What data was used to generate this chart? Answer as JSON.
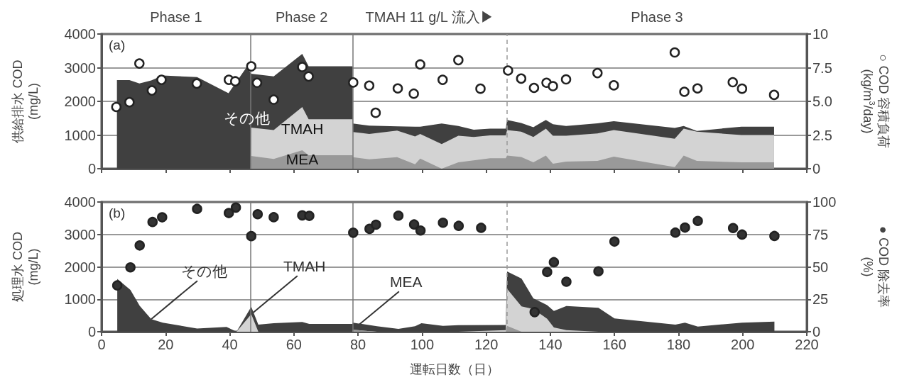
{
  "chart_data": [
    {
      "type": "area",
      "stacked": true,
      "tick_labels": "y",
      "grid": "y",
      "ylabel": "供給排水 COD\n(mg/L)",
      "y2label": "○ COD 容積負荷\n(kg/m$^{3}$/day)",
      "xlim": [
        0,
        220
      ],
      "xticks": [
        0,
        20,
        40,
        60,
        80,
        100,
        120,
        140,
        160,
        180,
        200,
        220
      ],
      "ylim": [
        0,
        4000
      ],
      "yticks": [
        0,
        1000,
        2000,
        3000,
        4000
      ],
      "y2lim": [
        0,
        10
      ],
      "y2ticks": [
        0,
        2.5,
        {
          "value": 5,
          "label": "5.0"
        },
        7.5,
        10
      ],
      "x": [
        4.8,
        8.7,
        11.8,
        15.5,
        19.1,
        29.8,
        39.6,
        45.3,
        46.5,
        46.6,
        53.7,
        62.6,
        64.6,
        78.3,
        78.4,
        83.5,
        92.2,
        97.8,
        99.4,
        106.1,
        111.3,
        116.1,
        121.2,
        126.1,
        126.5,
        130.9,
        134.7,
        138.6,
        140.8,
        144.9,
        154.7,
        159.8,
        178.8,
        181.6,
        185.7,
        199.6,
        209.8
      ],
      "series": [
        {
          "name": "MEA",
          "color": "#999999",
          "values": [
            0,
            0,
            0,
            0,
            0,
            0,
            0,
            0,
            0,
            380,
            290,
            550,
            400,
            400,
            340,
            280,
            340,
            130,
            300,
            0,
            190,
            250,
            310,
            310,
            390,
            350,
            190,
            390,
            150,
            210,
            230,
            360,
            50,
            390,
            230,
            190,
            190
          ]
        },
        {
          "name": "TMAH",
          "color": "#d3d3d3",
          "values": [
            0,
            0,
            0,
            0,
            0,
            0,
            0,
            0,
            0,
            840,
            860,
            1280,
            1070,
            1070,
            750,
            750,
            790,
            830,
            730,
            730,
            790,
            690,
            680,
            680,
            760,
            750,
            750,
            800,
            830,
            770,
            820,
            790,
            840,
            800,
            870,
            810,
            810
          ]
        },
        {
          "name": "その他",
          "color": "#404040",
          "values": [
            2630,
            2630,
            2530,
            2620,
            2770,
            2720,
            2240,
            3020,
            2840,
            1600,
            1590,
            1580,
            1570,
            1570,
            250,
            250,
            130,
            290,
            220,
            610,
            290,
            220,
            200,
            200,
            300,
            260,
            290,
            260,
            340,
            290,
            300,
            260,
            320,
            80,
            20,
            250,
            250
          ]
        },
        {
          "type": "scatter",
          "marker": "circle",
          "axis": "y2",
          "color": "#ffffff",
          "x": [
            4.6,
            8.7,
            11.8,
            15.7,
            18.7,
            29.7,
            39.7,
            41.7,
            46.7,
            48.5,
            53.7,
            62.6,
            64.6,
            78.5,
            83.5,
            85.5,
            92.4,
            97.4,
            99.4,
            106.4,
            111.3,
            118.2,
            126.8,
            130.9,
            134.9,
            138.8,
            140.8,
            144.9,
            154.7,
            159.8,
            178.8,
            181.8,
            185.9,
            196.9,
            199.8,
            209.8
          ],
          "values": [
            4.58,
            4.94,
            7.81,
            5.81,
            6.6,
            6.32,
            6.6,
            6.49,
            7.6,
            6.38,
            5.13,
            7.55,
            6.85,
            6.4,
            6.17,
            4.15,
            5.96,
            5.57,
            7.74,
            6.6,
            8.06,
            5.94,
            7.29,
            6.69,
            6.0,
            6.38,
            6.13,
            6.63,
            7.1,
            6.19,
            8.63,
            5.71,
            5.96,
            6.42,
            5.94,
            5.48
          ]
        }
      ],
      "ref_lines": [
        {
          "axis": "x",
          "value": 46.5,
          "color": "#777777",
          "line_style": "solid"
        },
        {
          "axis": "x",
          "value": 78.3,
          "color": "#777777",
          "line_style": "solid"
        },
        {
          "axis": "x",
          "value": 126.5,
          "color": "#999999",
          "line_style": "dashed"
        }
      ],
      "annotations": [
        "(a)",
        "Phase 1",
        "Phase 2",
        "TMAH 11 g/L 流入▶",
        "Phase 3"
      ]
    },
    {
      "type": "area",
      "stacked": true,
      "grid": "y",
      "xlabel": "運転日数（日）",
      "ylabel": "処理水 COD\n(mg/L)",
      "y2label": "● COD 除去率\n(%)",
      "xlim": [
        0,
        220
      ],
      "xticks": [
        0,
        20,
        40,
        60,
        80,
        100,
        120,
        140,
        160,
        180,
        200,
        220
      ],
      "ylim": [
        0,
        4000
      ],
      "yticks": [
        0,
        1000,
        2000,
        3000,
        4000
      ],
      "y2lim": [
        0,
        100
      ],
      "y2ticks": [
        0,
        25,
        50,
        75,
        100
      ],
      "x": [
        4.9,
        9.0,
        11.9,
        15.5,
        19.1,
        29.8,
        39.0,
        41.3,
        42.1,
        46.7,
        48.9,
        53.7,
        62.6,
        64.8,
        78.3,
        78.4,
        85.9,
        92.6,
        97.8,
        99.8,
        106.5,
        111.3,
        126.1,
        126.5,
        131.0,
        134.7,
        139.0,
        141.1,
        145.0,
        155.0,
        160.0,
        179.0,
        182.0,
        186.0,
        199.8,
        209.9
      ],
      "series": [
        {
          "color": "#999999",
          "values": [
            0,
            0,
            0,
            0,
            0,
            0,
            0,
            0,
            0,
            0,
            0,
            0,
            0,
            0,
            0,
            60,
            0,
            0,
            0,
            0,
            0,
            0,
            0,
            180,
            0,
            0,
            0,
            0,
            0,
            0,
            0,
            0,
            0,
            0,
            0,
            0
          ]
        },
        {
          "color": "#d3d3d3",
          "values": [
            0,
            0,
            0,
            0,
            0,
            0,
            0,
            0,
            0,
            540,
            0,
            0,
            0,
            0,
            0,
            0,
            0,
            0,
            0,
            0,
            0,
            0,
            50,
            1140,
            780,
            700,
            400,
            130,
            50,
            0,
            0,
            0,
            0,
            0,
            0,
            0
          ]
        },
        {
          "color": "#404040",
          "values": [
            1630,
            1290,
            800,
            390,
            280,
            100,
            150,
            40,
            0,
            230,
            220,
            260,
            300,
            240,
            240,
            220,
            170,
            90,
            170,
            260,
            180,
            200,
            160,
            540,
            860,
            330,
            420,
            510,
            740,
            740,
            410,
            220,
            280,
            160,
            280,
            310
          ]
        },
        {
          "type": "scatter",
          "marker": "circle",
          "axis": "y2",
          "color": "#333333",
          "x": [
            4.9,
            9.0,
            11.9,
            15.9,
            18.9,
            29.8,
            39.7,
            41.9,
            46.7,
            48.7,
            53.7,
            62.6,
            64.8,
            78.5,
            83.6,
            85.6,
            92.6,
            97.5,
            99.5,
            106.5,
            111.4,
            118.4,
            135.1,
            139.0,
            141.1,
            145.0,
            155.0,
            160.0,
            179.0,
            182.0,
            186.0,
            197.0,
            199.8,
            209.9
          ],
          "values": [
            35.7,
            49.6,
            66.5,
            84.6,
            88.2,
            94.7,
            91.5,
            95.7,
            73.7,
            90.6,
            88.3,
            89.7,
            89.3,
            76.3,
            79.3,
            82.5,
            89.5,
            82.7,
            78.0,
            84.0,
            81.6,
            80.1,
            15.1,
            46.0,
            53.6,
            38.5,
            46.6,
            69.5,
            76.4,
            80.3,
            85.4,
            79.9,
            74.9,
            73.8
          ]
        }
      ],
      "ref_lines": [
        {
          "axis": "x",
          "value": 46.5,
          "color": "#777777",
          "line_style": "solid"
        },
        {
          "axis": "x",
          "value": 78.3,
          "color": "#777777",
          "line_style": "solid"
        },
        {
          "axis": "x",
          "value": 126.5,
          "color": "#999999",
          "line_style": "dashed"
        }
      ],
      "annotations": [
        "(b)",
        {
          "text": "その他",
          "x": 15.5,
          "y": 390
        },
        {
          "text": "TMAH",
          "x": 46.7,
          "y": 540
        },
        {
          "text": "MEA",
          "x": 78.4,
          "y": 60
        }
      ]
    }
  ]
}
